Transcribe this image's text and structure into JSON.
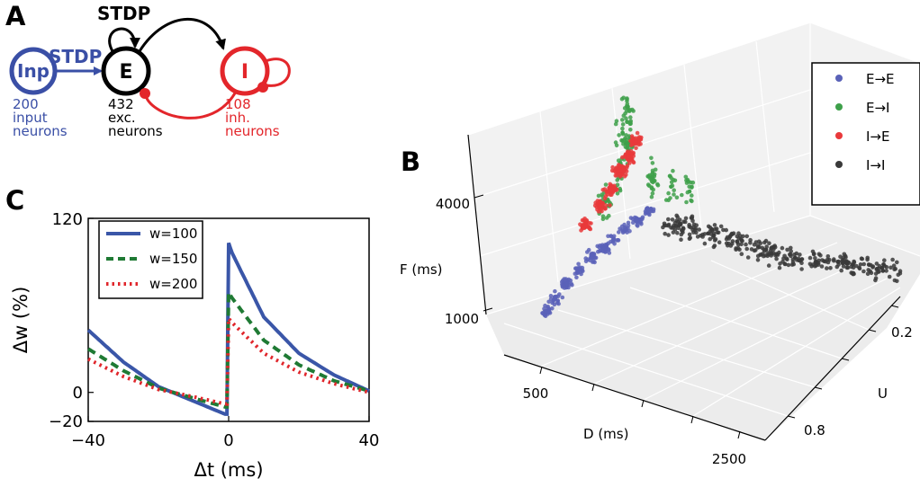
{
  "colors": {
    "input": "#3a4fa6",
    "excitatory": "#000000",
    "inhibitory": "#e3262b",
    "ee": "#5a62b8",
    "ei": "#3ea04a",
    "ie": "#e9393b",
    "ii": "#3a3a3a",
    "line_w100": "#3a56a8",
    "line_w150": "#1f7a34",
    "line_w200": "#e0262b"
  },
  "panels": {
    "a": "A",
    "b": "B",
    "c": "C"
  },
  "network": {
    "stdp_top": "STDP",
    "stdp_input": "STDP",
    "input_node": "Inp",
    "exc_node": "E",
    "inh_node": "I",
    "input_count": "200",
    "input_l1": "input",
    "input_l2": "neurons",
    "exc_count": "432",
    "exc_l1": "exc.",
    "exc_l2": "neurons",
    "inh_count": "108",
    "inh_l1": "inh.",
    "inh_l2": "neurons"
  },
  "chart_data": [
    {
      "type": "line",
      "xlabel": "Δt (ms)",
      "ylabel": "Δw (%)",
      "xlim": [
        -40,
        40
      ],
      "ylim": [
        -20,
        120
      ],
      "xticks": [
        "−40",
        "0",
        "40"
      ],
      "yticks": [
        "120",
        "0",
        "−20"
      ],
      "legend_position": "top-left",
      "series": [
        {
          "name": "w=100",
          "style": "solid",
          "x": [
            -40,
            -30,
            -20,
            -10,
            -1,
            0,
            1,
            10,
            20,
            30,
            40
          ],
          "y": [
            43,
            21,
            4,
            -6,
            -15,
            103,
            96,
            52,
            27,
            12,
            1
          ]
        },
        {
          "name": "w=150",
          "style": "dashed",
          "x": [
            -40,
            -30,
            -20,
            -10,
            -1,
            0,
            1,
            10,
            20,
            30,
            40
          ],
          "y": [
            30,
            15,
            3,
            -4,
            -10,
            69,
            65,
            36,
            19,
            8,
            1
          ]
        },
        {
          "name": "w=200",
          "style": "dotted",
          "x": [
            -40,
            -30,
            -20,
            -10,
            -1,
            0,
            1,
            10,
            20,
            30,
            40
          ],
          "y": [
            23,
            11,
            2,
            -3,
            -8,
            51,
            48,
            27,
            14,
            6,
            0
          ]
        }
      ]
    },
    {
      "type": "scatter",
      "xlabel": "D (ms)",
      "ylabel": "U",
      "zlabel": "F (ms)",
      "xticks": [
        "500",
        "2500"
      ],
      "yticks": [
        "0.2",
        "0.8"
      ],
      "zticks": [
        "4000",
        "1000"
      ],
      "grid": true,
      "legend_position": "top-right",
      "series": [
        {
          "name": "E→E",
          "points": [
            [
              120,
              0.18,
              400
            ],
            [
              180,
              0.2,
              650
            ],
            [
              260,
              0.22,
              950
            ],
            [
              340,
              0.25,
              1200
            ],
            [
              420,
              0.27,
              1450
            ],
            [
              500,
              0.29,
              1650
            ],
            [
              580,
              0.3,
              1850
            ],
            [
              660,
              0.32,
              2050
            ],
            [
              740,
              0.34,
              2250
            ],
            [
              820,
              0.36,
              2450
            ]
          ]
        },
        {
          "name": "E→I",
          "points": [
            [
              500,
              0.3,
              2600
            ],
            [
              600,
              0.32,
              3200
            ],
            [
              650,
              0.35,
              3800
            ],
            [
              700,
              0.28,
              4300
            ],
            [
              720,
              0.3,
              4800
            ],
            [
              800,
              0.4,
              3000
            ],
            [
              900,
              0.45,
              2700
            ],
            [
              1000,
              0.5,
              2500
            ]
          ]
        },
        {
          "name": "I→E",
          "points": [
            [
              400,
              0.25,
              2200
            ],
            [
              500,
              0.28,
              2600
            ],
            [
              560,
              0.3,
              2900
            ],
            [
              620,
              0.32,
              3300
            ],
            [
              680,
              0.33,
              3600
            ],
            [
              720,
              0.35,
              3900
            ]
          ]
        },
        {
          "name": "I→I",
          "points": [
            [
              900,
              0.5,
              1700
            ],
            [
              1100,
              0.55,
              1500
            ],
            [
              1300,
              0.6,
              1300
            ],
            [
              1500,
              0.65,
              1100
            ],
            [
              1700,
              0.7,
              900
            ],
            [
              1900,
              0.75,
              800
            ],
            [
              2100,
              0.8,
              700
            ],
            [
              2300,
              0.85,
              600
            ]
          ]
        }
      ]
    }
  ]
}
